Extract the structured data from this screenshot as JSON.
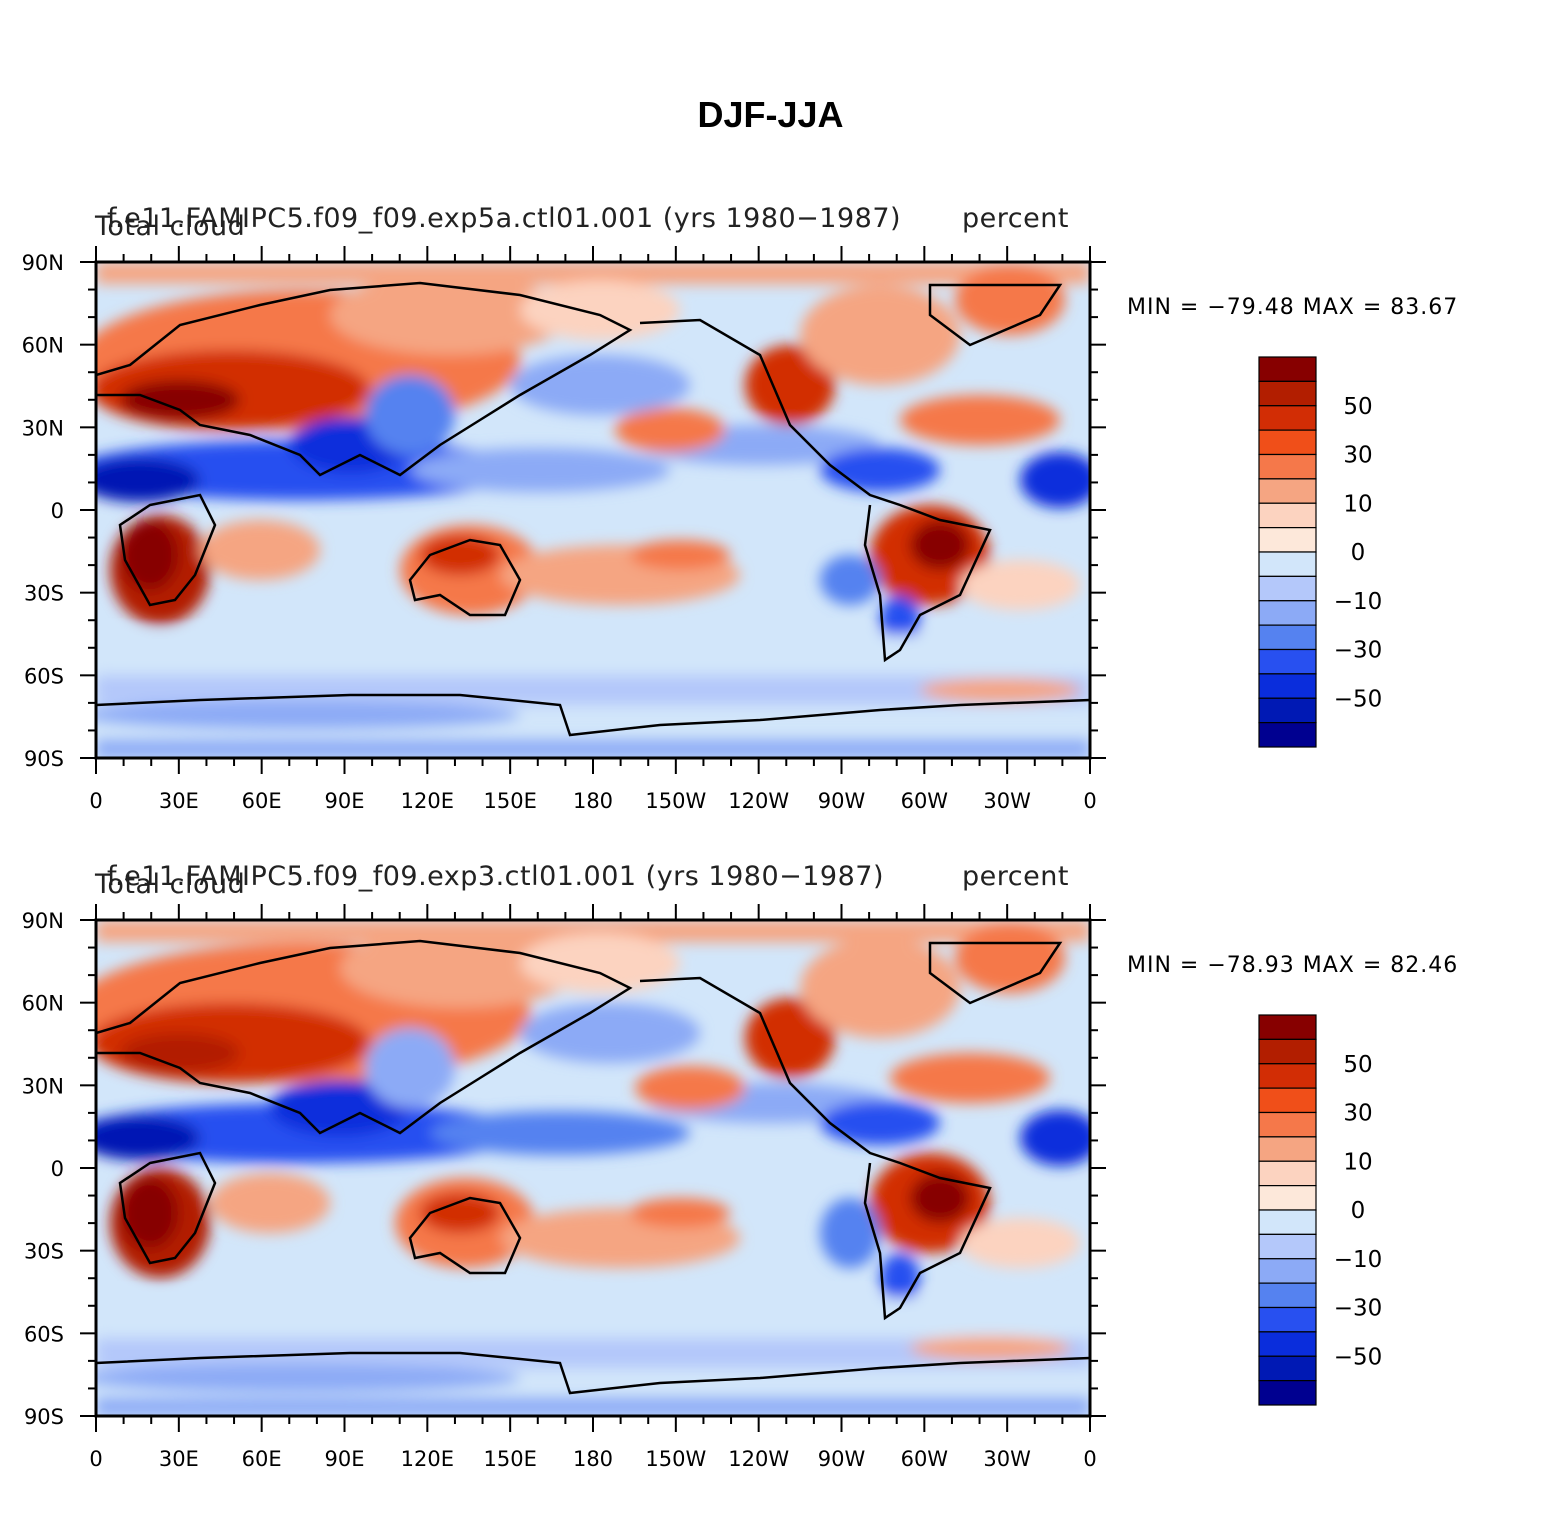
{
  "figure": {
    "title": "DJF-JJA"
  },
  "axes": {
    "lat_labels": [
      "90N",
      "60N",
      "30N",
      "0",
      "30S",
      "60S",
      "90S"
    ],
    "lon_labels": [
      "0",
      "30E",
      "60E",
      "90E",
      "120E",
      "150E",
      "180",
      "150W",
      "120W",
      "90W",
      "60W",
      "30W",
      "0"
    ]
  },
  "colorbar": {
    "colors": [
      "#870000",
      "#b21e00",
      "#d22d05",
      "#f04f19",
      "#f5784a",
      "#f5a582",
      "#fcd3c0",
      "#fde8da",
      "#d2e6fa",
      "#b4c8fa",
      "#8caaf6",
      "#5582f0",
      "#2850f0",
      "#0a2ddc",
      "#0019b4",
      "#000090"
    ],
    "labels": [
      "50",
      "30",
      "10",
      "0",
      "−10",
      "−30",
      "−50"
    ]
  },
  "panels": [
    {
      "case": "f.e11.FAMIPC5.f09_f09.exp5a.ctl01.001 (yrs 1980−1987)",
      "variable": "Total cloud",
      "units": "percent",
      "stats": "MIN = −79.48  MAX =  83.67"
    },
    {
      "case": "f.e11.FAMIPC5.f09_f09.exp3.ctl01.001 (yrs 1980−1987)",
      "variable": "Total cloud",
      "units": "percent",
      "stats": "MIN = −78.93  MAX =  82.46"
    }
  ]
}
